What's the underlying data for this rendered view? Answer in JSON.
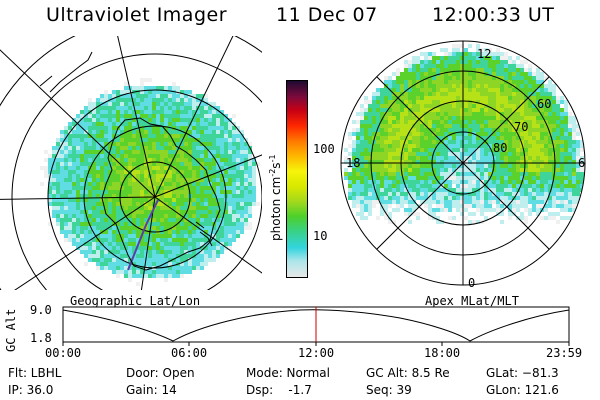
{
  "header": {
    "instrument": "Ultraviolet Imager",
    "date": "11 Dec 07",
    "time": "12:00:33 UT"
  },
  "left_map": {
    "caption": "Geographic Lat/Lon"
  },
  "right_map": {
    "caption": "Apex MLat/MLT",
    "mlt_labels": [
      "12",
      "18",
      "6",
      "0"
    ],
    "mlat_labels": [
      "60",
      "70",
      "80"
    ]
  },
  "colorbar": {
    "label": "photon cm",
    "label_sup1": "-2",
    "label_mid": "s",
    "label_sup2": "-1",
    "ticks": [
      "100",
      "10"
    ],
    "scale": "log",
    "colors": [
      "#e8e8e8",
      "#aee6ea",
      "#33d4de",
      "#38d28a",
      "#4ed02a",
      "#9ed81e",
      "#d8e800",
      "#f6f40a",
      "#ffb400",
      "#ff7c00",
      "#ff2800",
      "#c80014",
      "#7a0a3c",
      "#1e0a32"
    ]
  },
  "altitude_plot": {
    "y_axis_label": "GC Alt",
    "y_ticks": [
      "9.0",
      "1.8"
    ],
    "x_ticks": [
      "00:00",
      "06:00",
      "12:00",
      "18:00",
      "23:59"
    ],
    "marker_time": "12:00",
    "marker_color": "#cc0000"
  },
  "info": {
    "filter": "Flt: LBHL",
    "ip": "IP: 36.0",
    "door": "Door: Open",
    "gain": "Gain: 14",
    "mode": "Mode: Normal",
    "dsp": "Dsp:    -1.7",
    "gc_alt": "GC Alt: 8.5 Re",
    "seq": "Seq: 39",
    "glat": "GLat: −81.3",
    "glon": "GLon: 121.6"
  }
}
